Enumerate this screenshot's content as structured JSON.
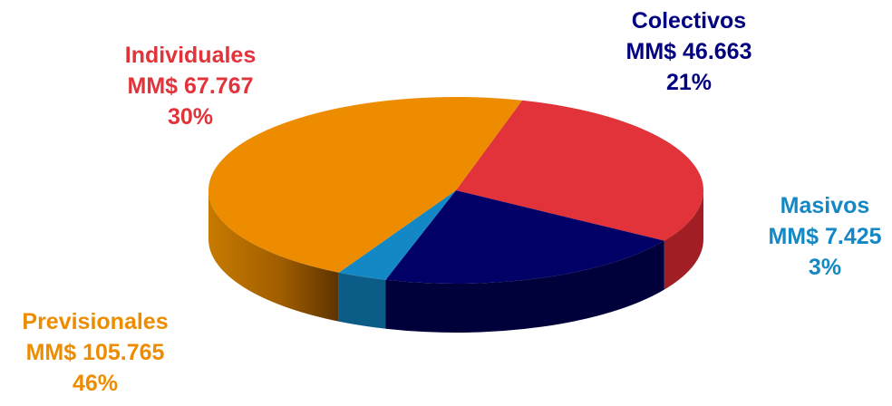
{
  "chart_data": {
    "type": "pie",
    "style": "3d",
    "slices": [
      {
        "name": "Individuales",
        "amount": "MM$ 67.767",
        "percent_label": "30%",
        "value": 67767,
        "color": "#e2323a",
        "side_color": "#a11f24"
      },
      {
        "name": "Colectivos",
        "amount": "MM$ 46.663",
        "percent_label": "21%",
        "value": 46663,
        "color": "#000066",
        "side_color": "#00003a"
      },
      {
        "name": "Masivos",
        "amount": "MM$ 7.425",
        "percent_label": "3%",
        "value": 7425,
        "color": "#1488c4",
        "side_color": "#0b5d87"
      },
      {
        "name": "Previsionales",
        "amount": "MM$ 105.765",
        "percent_label": "46%",
        "value": 105765,
        "color": "#ee8c00",
        "side_color": "#a85f00"
      }
    ]
  }
}
